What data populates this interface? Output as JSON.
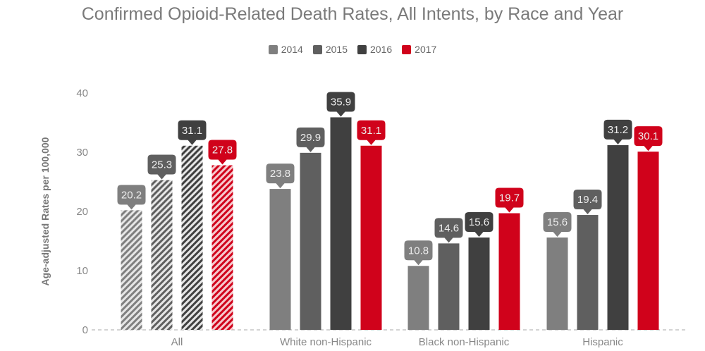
{
  "chart_data": {
    "type": "bar",
    "title": "Confirmed Opioid-Related Death Rates, All Intents, by Race and Year",
    "xlabel": "",
    "ylabel": "Age-adjusted Rates per 100,000",
    "ylim": [
      0,
      40
    ],
    "yticks": [
      0,
      10,
      20,
      30,
      40
    ],
    "grid": false,
    "legend_position": "top-center",
    "categories": [
      "All",
      "White non-Hispanic",
      "Black non-Hispanic",
      "Hispanic"
    ],
    "hatched_categories": [
      "All"
    ],
    "series": [
      {
        "name": "2014",
        "color": "#7f7f7f",
        "values": [
          20.2,
          23.8,
          10.8,
          15.6
        ]
      },
      {
        "name": "2015",
        "color": "#5f5f5f",
        "values": [
          25.3,
          29.9,
          14.6,
          19.4
        ]
      },
      {
        "name": "2016",
        "color": "#404040",
        "values": [
          31.1,
          35.9,
          15.6,
          31.2
        ]
      },
      {
        "name": "2017",
        "color": "#d0021b",
        "values": [
          27.8,
          31.1,
          19.7,
          30.1
        ]
      }
    ],
    "data_labels": [
      [
        "20.2",
        "23.8",
        "10.8",
        "15.6"
      ],
      [
        "25.3",
        "29.9",
        "14.6",
        "19.4"
      ],
      [
        "31.1",
        "35.9",
        "15.6",
        "31.2"
      ],
      [
        "27.8",
        "31.1",
        "19.7",
        "30.1"
      ]
    ]
  }
}
